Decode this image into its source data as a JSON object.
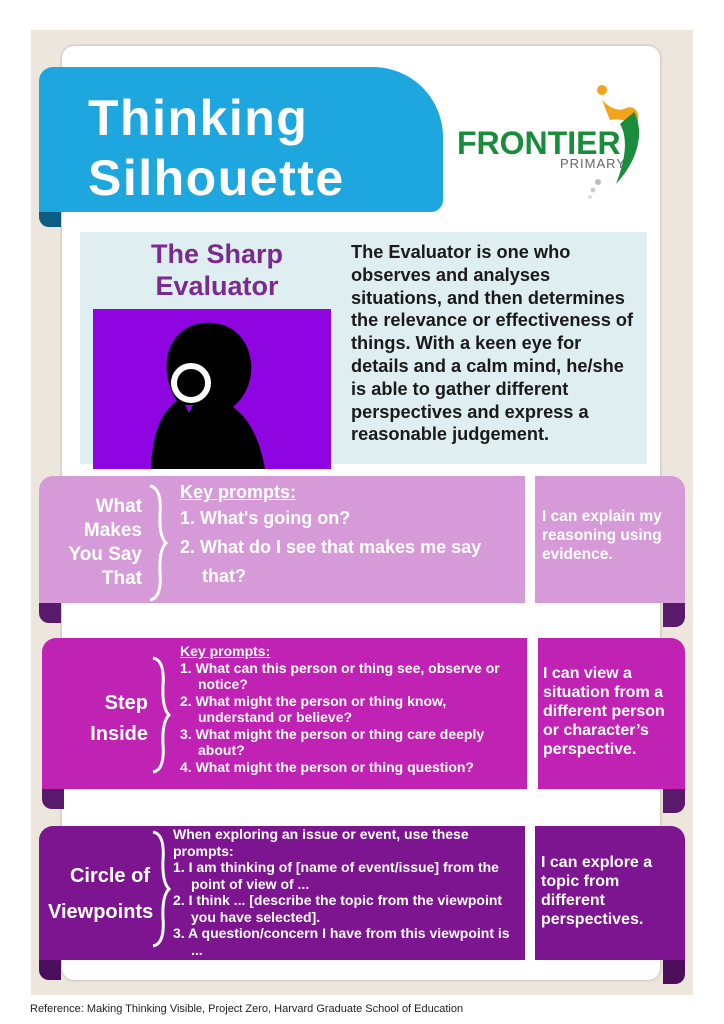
{
  "header": {
    "title": "Thinking\nSilhouette",
    "logo_name": "FRONTIER",
    "logo_sub": "PRIMARY"
  },
  "profile": {
    "role_title": "The Sharp\nEvaluator",
    "description": "The Evaluator is one who observes and analyses situations, and then determines the relevance or effectiveness of things. With a keen eye for details and a calm mind, he/she is able to gather different perspectives and express a reasonable judgement."
  },
  "routines": [
    {
      "name": "What\nMakes\nYou Say\nThat",
      "intro": "Key prompts:",
      "prompts": [
        "1. What's going on?",
        "2. What do I see that makes me say that?"
      ],
      "outcome": "I can explain my reasoning using evidence.",
      "color": "#d79ad8",
      "fold_color": "#5a1a6c"
    },
    {
      "name": "Step\nInside",
      "intro": "Key prompts:",
      "prompts": [
        "1. What can this person or thing see, observe or notice?",
        "2. What might the person or thing know, understand or believe?",
        "3. What might the person or thing care deeply about?",
        "4. What might the person or thing question?"
      ],
      "outcome": "I can view a situation from a different person or character’s perspective.",
      "color": "#c022b3",
      "fold_color": "#5a1a6c"
    },
    {
      "name": "Circle of\nViewpoints",
      "intro": "When exploring an issue or event, use these prompts:",
      "prompts": [
        "1.  I am thinking of [name of event/issue] from the point of view of ...",
        "2. I think ... [describe the topic from the viewpoint you have selected].",
        "3. A question/concern I have from this viewpoint is ..."
      ],
      "outcome": "I can explore a topic from different perspectives.",
      "color": "#7d1490",
      "fold_color": "#4a0e5a"
    }
  ],
  "footer": {
    "reference": "Reference: Making Thinking Visible, Project Zero, Harvard Graduate School of Education"
  }
}
